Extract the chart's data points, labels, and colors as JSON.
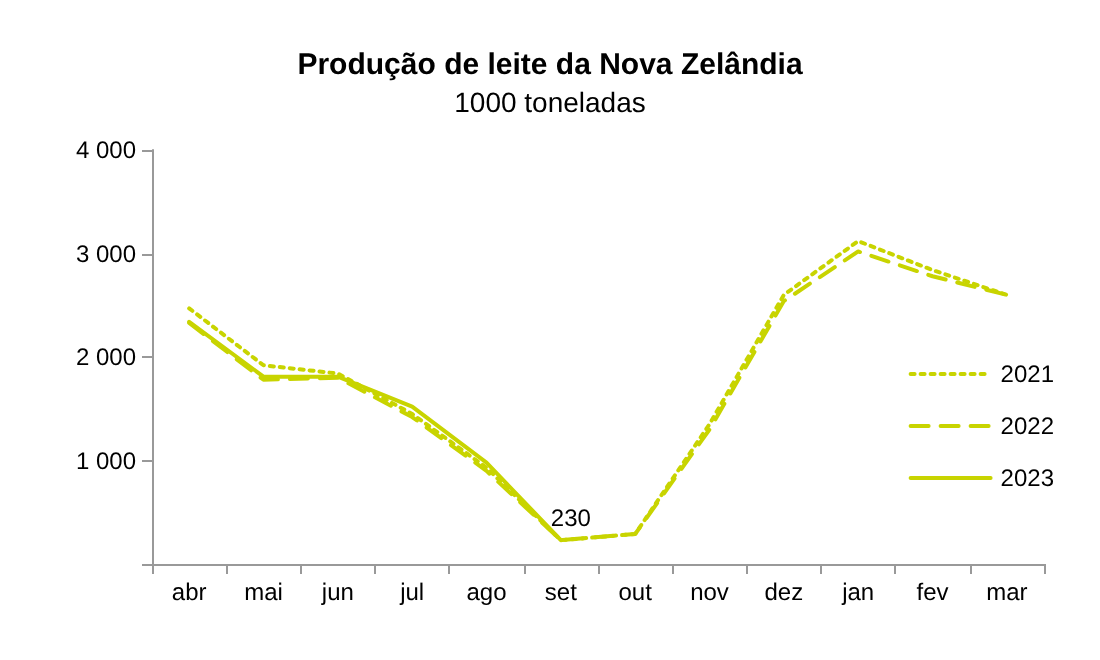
{
  "chart_data": {
    "type": "line",
    "title": "Produção de leite da Nova Zelândia",
    "subtitle": "1000 toneladas",
    "categories": [
      "abr",
      "mai",
      "jun",
      "jul",
      "ago",
      "set",
      "out",
      "nov",
      "dez",
      "jan",
      "fev",
      "mar"
    ],
    "series": [
      {
        "name": "2021",
        "color": "#c8d400",
        "line_style": "dotted",
        "values": [
          2470,
          1920,
          1840,
          1450,
          930,
          230,
          290,
          1350,
          2600,
          3120,
          2840,
          2600
        ]
      },
      {
        "name": "2022",
        "color": "#c8d400",
        "line_style": "dashed",
        "values": [
          2330,
          1780,
          1800,
          1420,
          900,
          230,
          290,
          1300,
          2540,
          3020,
          2780,
          2600
        ]
      },
      {
        "name": "2023",
        "color": "#c8d400",
        "line_style": "solid",
        "values": [
          2340,
          1810,
          1810,
          1520,
          980,
          230,
          null,
          null,
          null,
          null,
          null,
          null
        ],
        "value_labels": [
          null,
          null,
          null,
          null,
          null,
          "230",
          null,
          null,
          null,
          null,
          null,
          null
        ]
      }
    ],
    "ylim": [
      0,
      4000
    ],
    "yticks": [
      {
        "value": 0,
        "label": null
      },
      {
        "value": 1000,
        "label": "1 000"
      },
      {
        "value": 2000,
        "label": "2 000"
      },
      {
        "value": 3000,
        "label": "3 000"
      },
      {
        "value": 4000,
        "label": "4 000"
      }
    ],
    "grid": false,
    "legend": "right",
    "marker": "none"
  }
}
